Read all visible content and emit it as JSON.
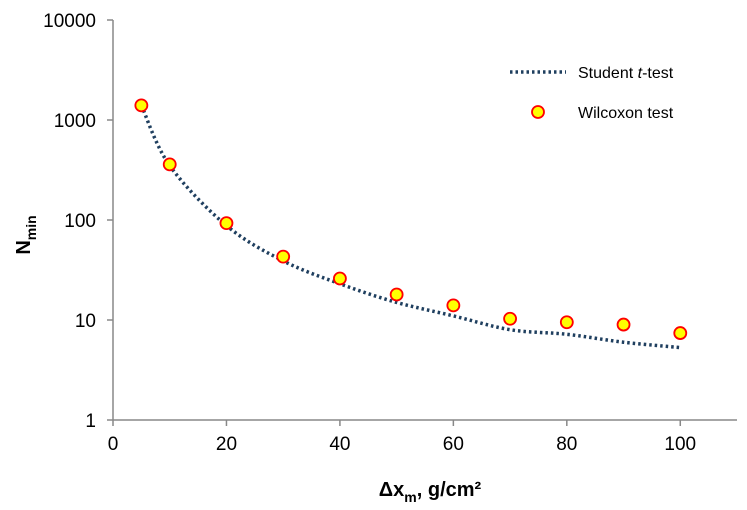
{
  "chart_data": {
    "type": "scatter",
    "title": "",
    "xlabel": {
      "main": "Δx",
      "sub": "m",
      "rest": ", g/cm²"
    },
    "ylabel": {
      "main": "N",
      "sub": "min"
    },
    "xlim": [
      0,
      110
    ],
    "ylim": [
      1,
      10000
    ],
    "yscale": "log",
    "xticks": [
      0,
      20,
      40,
      60,
      80,
      100
    ],
    "xtick_labels": [
      "0",
      "20",
      "40",
      "60",
      "80",
      "100"
    ],
    "yticks": [
      1,
      10,
      100,
      1000,
      10000
    ],
    "ytick_labels": [
      "1",
      "10",
      "100",
      "1000",
      "10000"
    ],
    "grid": false,
    "legend_position": "top-right",
    "series": [
      {
        "name": "Student t-test",
        "legend": {
          "before": "Student ",
          "italic": "t",
          "after": "-test"
        },
        "style": "dotted-line",
        "color": "#1f3f5f",
        "x": [
          5,
          10,
          20,
          30,
          40,
          50,
          60,
          70,
          80,
          90,
          100
        ],
        "y": [
          1400,
          350,
          88,
          39,
          23,
          15,
          11,
          8,
          7.2,
          6,
          5.3
        ]
      },
      {
        "name": "Wilcoxon test",
        "legend": {
          "before": "Wilcoxon test",
          "italic": "",
          "after": ""
        },
        "style": "marker",
        "color": "#ffff00",
        "edge_color": "#ff0000",
        "x": [
          5,
          10,
          20,
          30,
          40,
          50,
          60,
          70,
          80,
          90,
          100
        ],
        "y": [
          1400,
          360,
          93,
          43,
          26,
          18,
          14,
          10.3,
          9.5,
          9,
          7.4
        ]
      }
    ]
  }
}
